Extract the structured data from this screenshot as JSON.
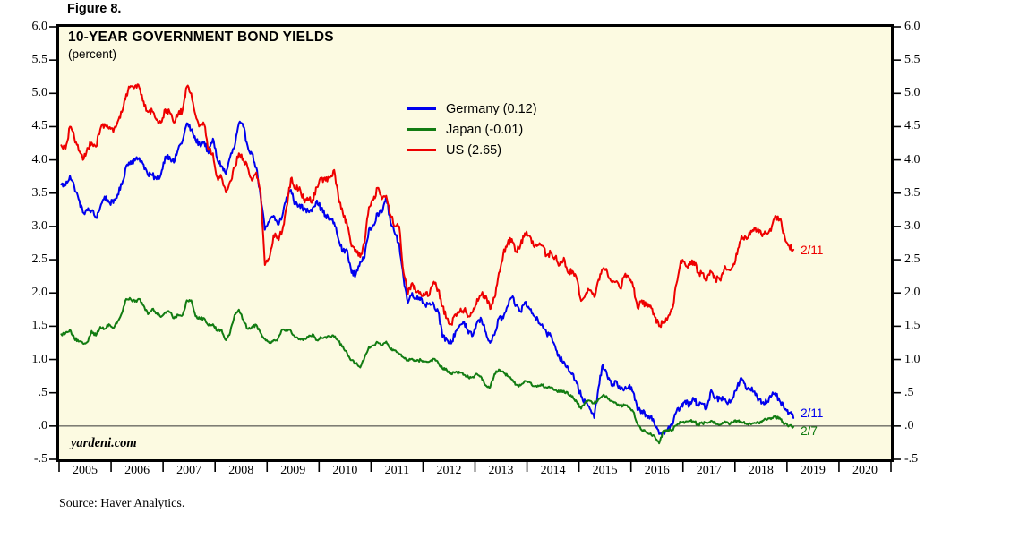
{
  "figure_label": "Figure 8.",
  "header": {
    "title": "10-YEAR GOVERNMENT BOND YIELDS",
    "subtitle": "(percent)"
  },
  "watermark": "yardeni.com",
  "source_note": "Source: Haver Analytics.",
  "colors": {
    "germany": "#0000ee",
    "japan": "#127c12",
    "us": "#ee0000",
    "plot_background": "#fcfae1",
    "frame": "#000000",
    "zero_line": "#333333"
  },
  "legend": {
    "items": [
      {
        "label": "Germany (0.12)",
        "color_key": "germany"
      },
      {
        "label": "Japan (-0.01)",
        "color_key": "japan"
      },
      {
        "label": "US (2.65)",
        "color_key": "us"
      }
    ]
  },
  "annotations": [
    {
      "text": "2/11",
      "series": "US",
      "color_key": "us",
      "value": 2.65
    },
    {
      "text": "2/11",
      "series": "Germany",
      "color_key": "germany",
      "value": 0.12
    },
    {
      "text": "2/7",
      "series": "Japan",
      "color_key": "japan",
      "value": -0.01
    }
  ],
  "y_axis": {
    "tick_values": [
      6.0,
      5.5,
      5.0,
      4.5,
      4.0,
      3.5,
      3.0,
      2.5,
      2.0,
      1.5,
      1.0,
      0.5,
      0.0,
      -0.5
    ],
    "tick_labels": [
      "6.0",
      "5.5",
      "5.0",
      "4.5",
      "4.0",
      "3.5",
      "3.0",
      "2.5",
      "2.0",
      "1.5",
      "1.0",
      ".5",
      ".0",
      "-.5"
    ]
  },
  "x_axis": {
    "year_labels": [
      "2005",
      "2006",
      "2007",
      "2008",
      "2009",
      "2010",
      "2011",
      "2012",
      "2013",
      "2014",
      "2015",
      "2016",
      "2017",
      "2018",
      "2019",
      "2020"
    ]
  },
  "chart_data": {
    "type": "line",
    "title": "10-YEAR GOVERNMENT BOND YIELDS",
    "ylabel": "percent",
    "ylim": [
      -0.5,
      6.0
    ],
    "ytick_step": 0.5,
    "x_range_years": [
      2005,
      2021
    ],
    "x_resolution": "monthly",
    "start_month": "2005-01",
    "end_month": "2019-02",
    "zero_reference_line": true,
    "grid": false,
    "legend_position": "upper-center-left",
    "series": [
      {
        "name": "Germany",
        "legend_label": "Germany (0.12)",
        "color_key": "germany",
        "end_label": "2/11",
        "end_value": 0.12,
        "values": [
          3.63,
          3.62,
          3.76,
          3.6,
          3.41,
          3.21,
          3.24,
          3.24,
          3.13,
          3.29,
          3.45,
          3.37,
          3.35,
          3.48,
          3.63,
          3.91,
          3.98,
          3.99,
          4.03,
          3.93,
          3.77,
          3.77,
          3.71,
          3.78,
          4.05,
          4.05,
          3.96,
          4.17,
          4.29,
          4.55,
          4.45,
          4.3,
          4.23,
          4.27,
          4.1,
          4.32,
          4.01,
          3.91,
          3.79,
          4.05,
          4.2,
          4.55,
          4.5,
          4.21,
          4.09,
          3.89,
          3.45,
          2.95,
          3.07,
          3.16,
          3.03,
          3.15,
          3.44,
          3.55,
          3.33,
          3.33,
          3.25,
          3.23,
          3.28,
          3.39,
          3.26,
          3.17,
          3.1,
          3.06,
          2.8,
          2.62,
          2.64,
          2.3,
          2.28,
          2.47,
          2.53,
          2.96,
          3.02,
          3.2,
          3.21,
          3.45,
          3.06,
          2.89,
          2.74,
          2.22,
          1.85,
          2.0,
          1.91,
          1.93,
          1.82,
          1.85,
          1.83,
          1.72,
          1.34,
          1.3,
          1.24,
          1.42,
          1.52,
          1.56,
          1.39,
          1.36,
          1.56,
          1.6,
          1.41,
          1.25,
          1.37,
          1.62,
          1.62,
          1.8,
          1.93,
          1.81,
          1.72,
          1.86,
          1.77,
          1.66,
          1.6,
          1.53,
          1.4,
          1.35,
          1.2,
          1.02,
          0.97,
          0.87,
          0.79,
          0.64,
          0.45,
          0.35,
          0.26,
          0.12,
          0.58,
          0.92,
          0.76,
          0.61,
          0.68,
          0.55,
          0.56,
          0.6,
          0.51,
          0.24,
          0.23,
          0.17,
          0.14,
          0.01,
          -0.12,
          -0.09,
          -0.04,
          0.02,
          0.22,
          0.29,
          0.38,
          0.3,
          0.41,
          0.3,
          0.34,
          0.27,
          0.54,
          0.42,
          0.41,
          0.41,
          0.36,
          0.42,
          0.58,
          0.72,
          0.57,
          0.56,
          0.52,
          0.4,
          0.36,
          0.37,
          0.46,
          0.46,
          0.36,
          0.25,
          0.2,
          0.12
        ]
      },
      {
        "name": "Japan",
        "legend_label": "Japan (-0.01)",
        "color_key": "japan",
        "end_label": "2/7",
        "end_value": -0.01,
        "values": [
          1.38,
          1.4,
          1.45,
          1.32,
          1.27,
          1.24,
          1.26,
          1.43,
          1.36,
          1.49,
          1.46,
          1.53,
          1.47,
          1.57,
          1.7,
          1.91,
          1.91,
          1.87,
          1.91,
          1.81,
          1.68,
          1.76,
          1.7,
          1.64,
          1.71,
          1.71,
          1.62,
          1.67,
          1.67,
          1.89,
          1.89,
          1.65,
          1.61,
          1.62,
          1.51,
          1.53,
          1.43,
          1.45,
          1.29,
          1.41,
          1.67,
          1.75,
          1.6,
          1.46,
          1.49,
          1.52,
          1.4,
          1.31,
          1.25,
          1.29,
          1.31,
          1.45,
          1.45,
          1.43,
          1.33,
          1.31,
          1.31,
          1.33,
          1.38,
          1.29,
          1.33,
          1.34,
          1.35,
          1.34,
          1.27,
          1.2,
          1.09,
          0.99,
          0.94,
          0.88,
          1.03,
          1.19,
          1.21,
          1.26,
          1.21,
          1.27,
          1.15,
          1.14,
          1.09,
          1.03,
          0.99,
          1.01,
          0.98,
          0.99,
          0.97,
          0.97,
          1.01,
          0.95,
          0.86,
          0.84,
          0.78,
          0.81,
          0.8,
          0.77,
          0.73,
          0.74,
          0.78,
          0.73,
          0.61,
          0.58,
          0.78,
          0.85,
          0.82,
          0.75,
          0.7,
          0.62,
          0.61,
          0.68,
          0.66,
          0.6,
          0.61,
          0.61,
          0.58,
          0.58,
          0.54,
          0.51,
          0.53,
          0.48,
          0.45,
          0.36,
          0.26,
          0.36,
          0.38,
          0.34,
          0.41,
          0.46,
          0.43,
          0.38,
          0.35,
          0.31,
          0.31,
          0.28,
          0.22,
          0.03,
          -0.06,
          -0.09,
          -0.11,
          -0.16,
          -0.26,
          -0.07,
          -0.06,
          -0.06,
          0.01,
          0.06,
          0.06,
          0.08,
          0.07,
          0.02,
          0.04,
          0.05,
          0.08,
          0.04,
          0.02,
          0.06,
          0.04,
          0.05,
          0.08,
          0.06,
          0.04,
          0.04,
          0.05,
          0.04,
          0.08,
          0.1,
          0.12,
          0.14,
          0.1,
          0.03,
          0.0,
          -0.01
        ]
      },
      {
        "name": "US",
        "legend_label": "US (2.65)",
        "color_key": "us",
        "end_label": "2/11",
        "end_value": 2.65,
        "values": [
          4.22,
          4.17,
          4.5,
          4.34,
          4.14,
          4.0,
          4.18,
          4.26,
          4.2,
          4.46,
          4.54,
          4.47,
          4.42,
          4.57,
          4.72,
          4.99,
          5.11,
          5.11,
          5.09,
          4.88,
          4.72,
          4.73,
          4.6,
          4.56,
          4.76,
          4.72,
          4.56,
          4.69,
          4.75,
          5.1,
          5.0,
          4.67,
          4.52,
          4.53,
          4.15,
          4.1,
          3.74,
          3.74,
          3.51,
          3.68,
          3.88,
          4.1,
          4.01,
          3.89,
          3.69,
          3.81,
          3.53,
          2.42,
          2.52,
          2.87,
          2.82,
          2.93,
          3.29,
          3.72,
          3.56,
          3.59,
          3.4,
          3.39,
          3.4,
          3.59,
          3.73,
          3.69,
          3.73,
          3.85,
          3.42,
          3.2,
          3.01,
          2.7,
          2.65,
          2.54,
          2.76,
          3.29,
          3.39,
          3.58,
          3.41,
          3.46,
          3.17,
          3.0,
          3.0,
          2.3,
          1.98,
          2.15,
          2.01,
          1.98,
          1.97,
          1.97,
          2.17,
          2.05,
          1.8,
          1.62,
          1.53,
          1.68,
          1.72,
          1.75,
          1.65,
          1.72,
          1.91,
          1.98,
          1.96,
          1.76,
          1.93,
          2.3,
          2.58,
          2.74,
          2.81,
          2.62,
          2.72,
          2.9,
          2.86,
          2.71,
          2.72,
          2.71,
          2.56,
          2.6,
          2.54,
          2.42,
          2.53,
          2.3,
          2.33,
          2.21,
          1.88,
          1.98,
          2.04,
          1.94,
          2.2,
          2.36,
          2.32,
          2.17,
          2.17,
          2.07,
          2.26,
          2.24,
          2.09,
          1.78,
          1.89,
          1.81,
          1.81,
          1.64,
          1.5,
          1.56,
          1.63,
          1.76,
          2.14,
          2.49,
          2.43,
          2.42,
          2.48,
          2.3,
          2.3,
          2.19,
          2.32,
          2.21,
          2.2,
          2.36,
          2.35,
          2.4,
          2.58,
          2.86,
          2.84,
          2.87,
          2.98,
          2.91,
          2.89,
          2.89,
          3.0,
          3.15,
          3.12,
          2.83,
          2.71,
          2.65
        ]
      }
    ]
  }
}
